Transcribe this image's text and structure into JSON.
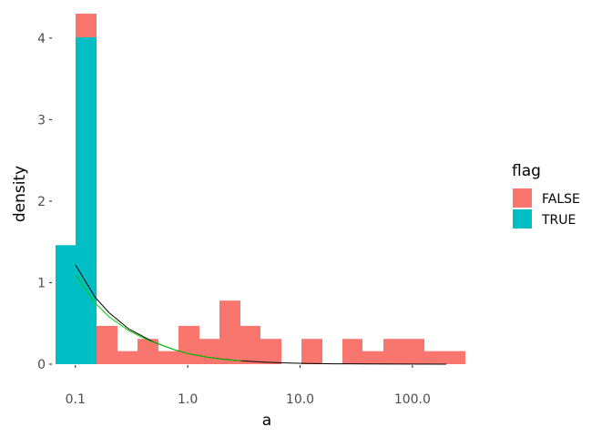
{
  "chart_data": {
    "type": "histogram",
    "xlabel": "a",
    "ylabel": "density",
    "x_scale": "log10",
    "x_ticks": [
      "0.1",
      "1.0",
      "10.0",
      "100.0"
    ],
    "y_ticks": [
      "0",
      "1",
      "2",
      "3",
      "4"
    ],
    "xlim": [
      0.063,
      350
    ],
    "ylim": [
      0,
      4.3
    ],
    "grid": false,
    "stacked": true,
    "legend": {
      "title": "flag",
      "position": "right",
      "entries": [
        {
          "label": "FALSE",
          "color": "#F8766D"
        },
        {
          "label": "TRUE",
          "color": "#00BFC4"
        }
      ]
    },
    "bin_edges": [
      0.0663,
      0.1,
      0.1553,
      0.2371,
      0.3594,
      0.5489,
      0.8325,
      1.2706,
      1.9306,
      2.9512,
      4.4668,
      6.7608,
      10.3276,
      15.7036,
      23.8781,
      36.2341,
      55.208,
      84.1395,
      127.9802,
      194.9845,
      296.4831
    ],
    "series": [
      {
        "name": "FALSE",
        "color": "#F8766D",
        "values": [
          0,
          0.29,
          0.47,
          0.16,
          0.31,
          0.16,
          0.47,
          0.31,
          0.78,
          0.47,
          0.31,
          0,
          0.31,
          0,
          0.31,
          0.16,
          0.31,
          0.31,
          0.16,
          0.16
        ]
      },
      {
        "name": "TRUE",
        "color": "#00BFC4",
        "values": [
          1.46,
          4.01,
          0,
          0,
          0,
          0,
          0,
          0,
          0,
          0,
          0,
          0,
          0,
          0,
          0,
          0,
          0,
          0,
          0,
          0
        ]
      }
    ],
    "density_lines": [
      {
        "color": "#000000",
        "x": [
          0.1,
          0.15,
          0.2,
          0.3,
          0.5,
          0.75,
          1,
          1.5,
          2,
          3,
          5,
          8,
          12,
          20,
          40,
          80,
          200
        ],
        "y": [
          1.22,
          0.82,
          0.63,
          0.43,
          0.27,
          0.18,
          0.13,
          0.085,
          0.063,
          0.04,
          0.023,
          0.013,
          0.008,
          0.004,
          0.002,
          0.001,
          0
        ]
      },
      {
        "color": "#00CC00",
        "x": [
          0.1,
          0.15,
          0.2,
          0.3,
          0.45,
          0.75,
          1,
          1.5,
          2,
          3
        ],
        "y": [
          1.1,
          0.75,
          0.58,
          0.41,
          0.29,
          0.18,
          0.13,
          0.085,
          0.06,
          0.04
        ]
      }
    ]
  }
}
